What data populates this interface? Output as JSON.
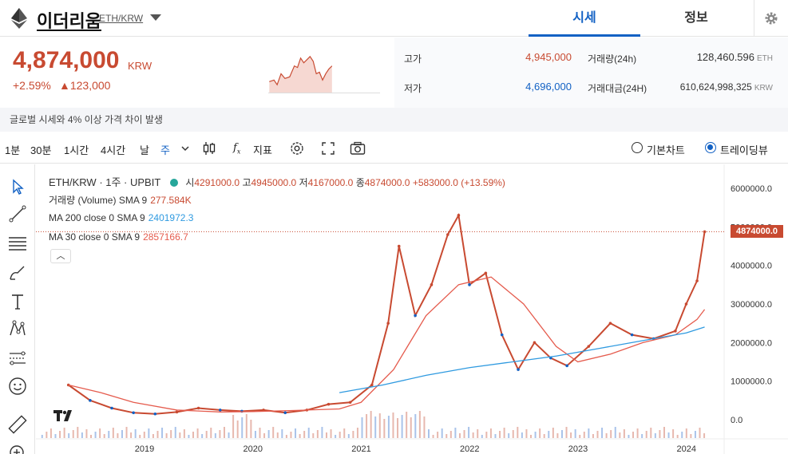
{
  "header": {
    "coin_name": "이더리움",
    "pair": "ETH/KRW",
    "tabs": [
      {
        "label": "시세"
      },
      {
        "label": "정보"
      }
    ]
  },
  "summary": {
    "price": "4,874,000",
    "currency": "KRW",
    "change_rate": "+2.59%",
    "change_amount": "▲123,000",
    "high_label": "고가",
    "high_value": "4,945,000",
    "low_label": "저가",
    "low_value": "4,696,000",
    "volume_label": "거래량(24h)",
    "volume_value": "128,460.596",
    "volume_unit": "ETH",
    "amount_label": "거래대금(24H)",
    "amount_value": "610,624,998,325",
    "amount_unit": "KRW"
  },
  "notice": "글로벌 시세와 4% 이상 가격 차이 발생",
  "toolbar": {
    "intervals": [
      "1분",
      "30분",
      "1시간",
      "4시간",
      "날",
      "주"
    ],
    "active_interval": "주",
    "indicator_label": "지표",
    "view_basic": "기본차트",
    "view_trading": "트레이딩뷰",
    "selected_view": "트레이딩뷰"
  },
  "legend": {
    "title": "ETH/KRW · 1주 · UPBIT",
    "ohlc": {
      "open_label": "시",
      "open": "4291000.0",
      "high_label": "고",
      "high": "4945000.0",
      "low_label": "저",
      "low": "4167000.0",
      "close_label": "종",
      "close": "4874000.0",
      "change": "+583000.0 (+13.59%)"
    },
    "volume_label": "거래량 (Volume)",
    "volume_sma": "SMA 9",
    "volume_value": "277.584K",
    "ma200_label": "MA 200 close 0 SMA 9",
    "ma200_value": "2401972.3",
    "ma30_label": "MA 30 close 0 SMA 9",
    "ma30_value": "2857166.7"
  },
  "colors": {
    "up": "#c84a31",
    "down": "#1261c4",
    "ma30": "#e55b4d",
    "ma200": "#2f9ae0",
    "accent": "#1261c4"
  },
  "icons": [
    "ethereum-icon",
    "gear-icon",
    "candlestick-icon",
    "fx-icon",
    "settings-icon",
    "fullscreen-icon",
    "camera-icon",
    "cursor-icon",
    "trendline-icon",
    "horizontal-lines-icon",
    "brush-icon",
    "text-icon",
    "pattern-icon",
    "fibonacci-icon",
    "smiley-icon",
    "ruler-icon",
    "zoom-in-icon"
  ],
  "chart_data": {
    "type": "line",
    "title": "ETH/KRW · 1주 · UPBIT",
    "x_ticks": [
      "2019",
      "2020",
      "2021",
      "2022",
      "2023",
      "2024"
    ],
    "y_ticks": [
      "6000000.0",
      "5000000.0",
      "4000000.0",
      "3000000.0",
      "2000000.0",
      "1000000.0",
      "0.0"
    ],
    "ylim": [
      0,
      6000000
    ],
    "last_price_label": "4874000.0",
    "series": [
      {
        "name": "Price",
        "x": [
          "2018.3",
          "2018.5",
          "2018.7",
          "2018.9",
          "2019.1",
          "2019.3",
          "2019.5",
          "2019.7",
          "2019.9",
          "2020.1",
          "2020.3",
          "2020.5",
          "2020.7",
          "2020.9",
          "2021.1",
          "2021.25",
          "2021.35",
          "2021.5",
          "2021.65",
          "2021.8",
          "2021.9",
          "2022.0",
          "2022.15",
          "2022.3",
          "2022.45",
          "2022.6",
          "2022.75",
          "2022.9",
          "2023.1",
          "2023.3",
          "2023.5",
          "2023.7",
          "2023.9",
          "2024.0",
          "2024.1",
          "2024.17"
        ],
        "values": [
          900000,
          500000,
          300000,
          180000,
          150000,
          200000,
          300000,
          250000,
          220000,
          250000,
          180000,
          250000,
          400000,
          450000,
          900000,
          2500000,
          4500000,
          2700000,
          3500000,
          4800000,
          5300000,
          3500000,
          3800000,
          2200000,
          1300000,
          2000000,
          1600000,
          1400000,
          1900000,
          2500000,
          2200000,
          2100000,
          2300000,
          3000000,
          3600000,
          4874000
        ]
      },
      {
        "name": "MA 30 close 0 SMA 9",
        "x": [
          "2018.3",
          "2018.6",
          "2018.9",
          "2019.3",
          "2019.7",
          "2020.0",
          "2020.4",
          "2020.8",
          "2021.0",
          "2021.3",
          "2021.6",
          "2021.9",
          "2022.2",
          "2022.5",
          "2022.8",
          "2023.0",
          "2023.3",
          "2023.6",
          "2023.9",
          "2024.1",
          "2024.17"
        ],
        "values": [
          900000,
          700000,
          450000,
          250000,
          200000,
          210000,
          240000,
          280000,
          450000,
          1300000,
          2700000,
          3500000,
          3700000,
          3000000,
          1900000,
          1500000,
          1700000,
          2000000,
          2200000,
          2600000,
          2857166.7
        ]
      },
      {
        "name": "MA 200 close 0 SMA 9",
        "x": [
          "2020.8",
          "2021.2",
          "2021.6",
          "2022.0",
          "2022.4",
          "2022.8",
          "2023.2",
          "2023.6",
          "2024.0",
          "2024.17"
        ],
        "values": [
          700000,
          900000,
          1150000,
          1350000,
          1500000,
          1650000,
          1850000,
          2050000,
          2250000,
          2401972.3
        ]
      }
    ]
  }
}
